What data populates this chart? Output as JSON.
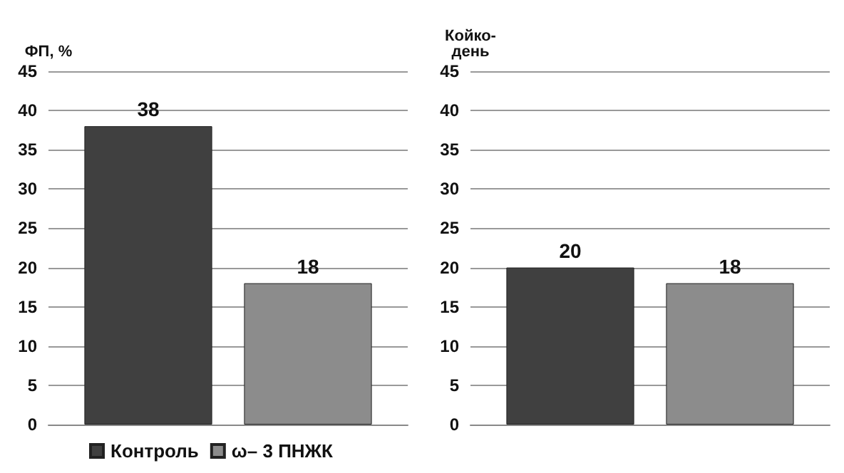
{
  "chart_data": [
    {
      "type": "bar",
      "ylabel": "ФП, %",
      "categories": [
        null
      ],
      "series": [
        {
          "name": "Контроль",
          "color": "#404040",
          "values": [
            38
          ]
        },
        {
          "name": "ω– 3 ПНЖК",
          "color": "#8c8c8c",
          "values": [
            18
          ]
        }
      ],
      "ylim": [
        0,
        45
      ],
      "yticks": [
        0,
        5,
        10,
        15,
        20,
        25,
        30,
        35,
        40,
        45
      ],
      "grid": "y",
      "data_labels": true,
      "legend": "bottom"
    },
    {
      "type": "bar",
      "ylabel": "Койко-день",
      "categories": [
        null
      ],
      "series": [
        {
          "color": "#404040",
          "values": [
            20
          ]
        },
        {
          "color": "#8c8c8c",
          "values": [
            18
          ]
        }
      ],
      "ylim": [
        0,
        45
      ],
      "yticks": [
        0,
        5,
        10,
        15,
        20,
        25,
        30,
        35,
        40,
        45
      ],
      "grid": "y",
      "data_labels": true
    }
  ]
}
